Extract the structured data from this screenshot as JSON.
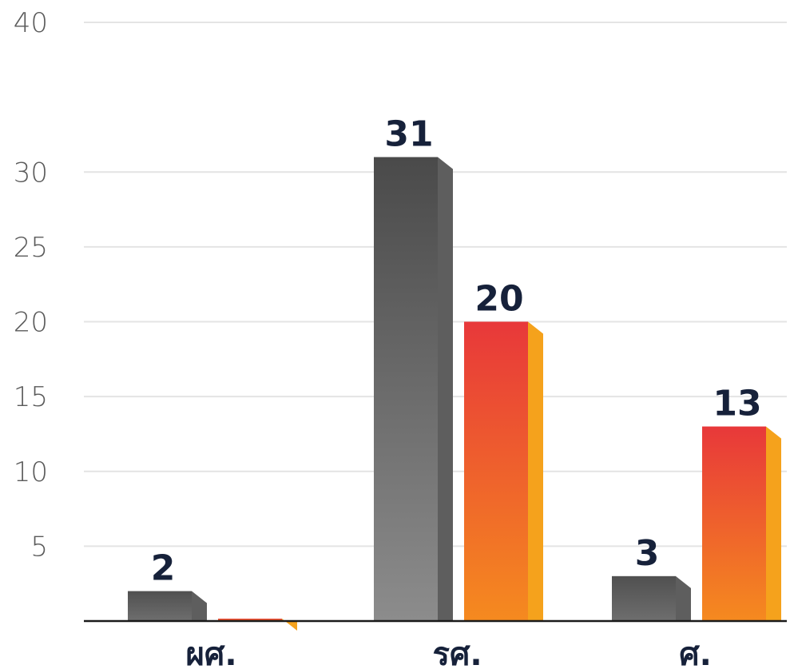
{
  "chart_data": {
    "type": "bar",
    "title": "",
    "xlabel": "",
    "ylabel": "",
    "categories": [
      "ผศ.",
      "รศ.",
      "ศ."
    ],
    "series": [
      {
        "color": "#555555",
        "values": [
          2,
          31,
          3
        ]
      },
      {
        "color": "#f07820",
        "values": [
          0,
          20,
          13
        ]
      }
    ],
    "data_labels": [
      [
        "2",
        "31",
        "3"
      ],
      [
        "",
        "20",
        "13"
      ]
    ],
    "ylim": [
      0,
      40
    ],
    "yticks": [
      5,
      10,
      15,
      20,
      25,
      30,
      40
    ],
    "grid": true,
    "style": "3d"
  }
}
